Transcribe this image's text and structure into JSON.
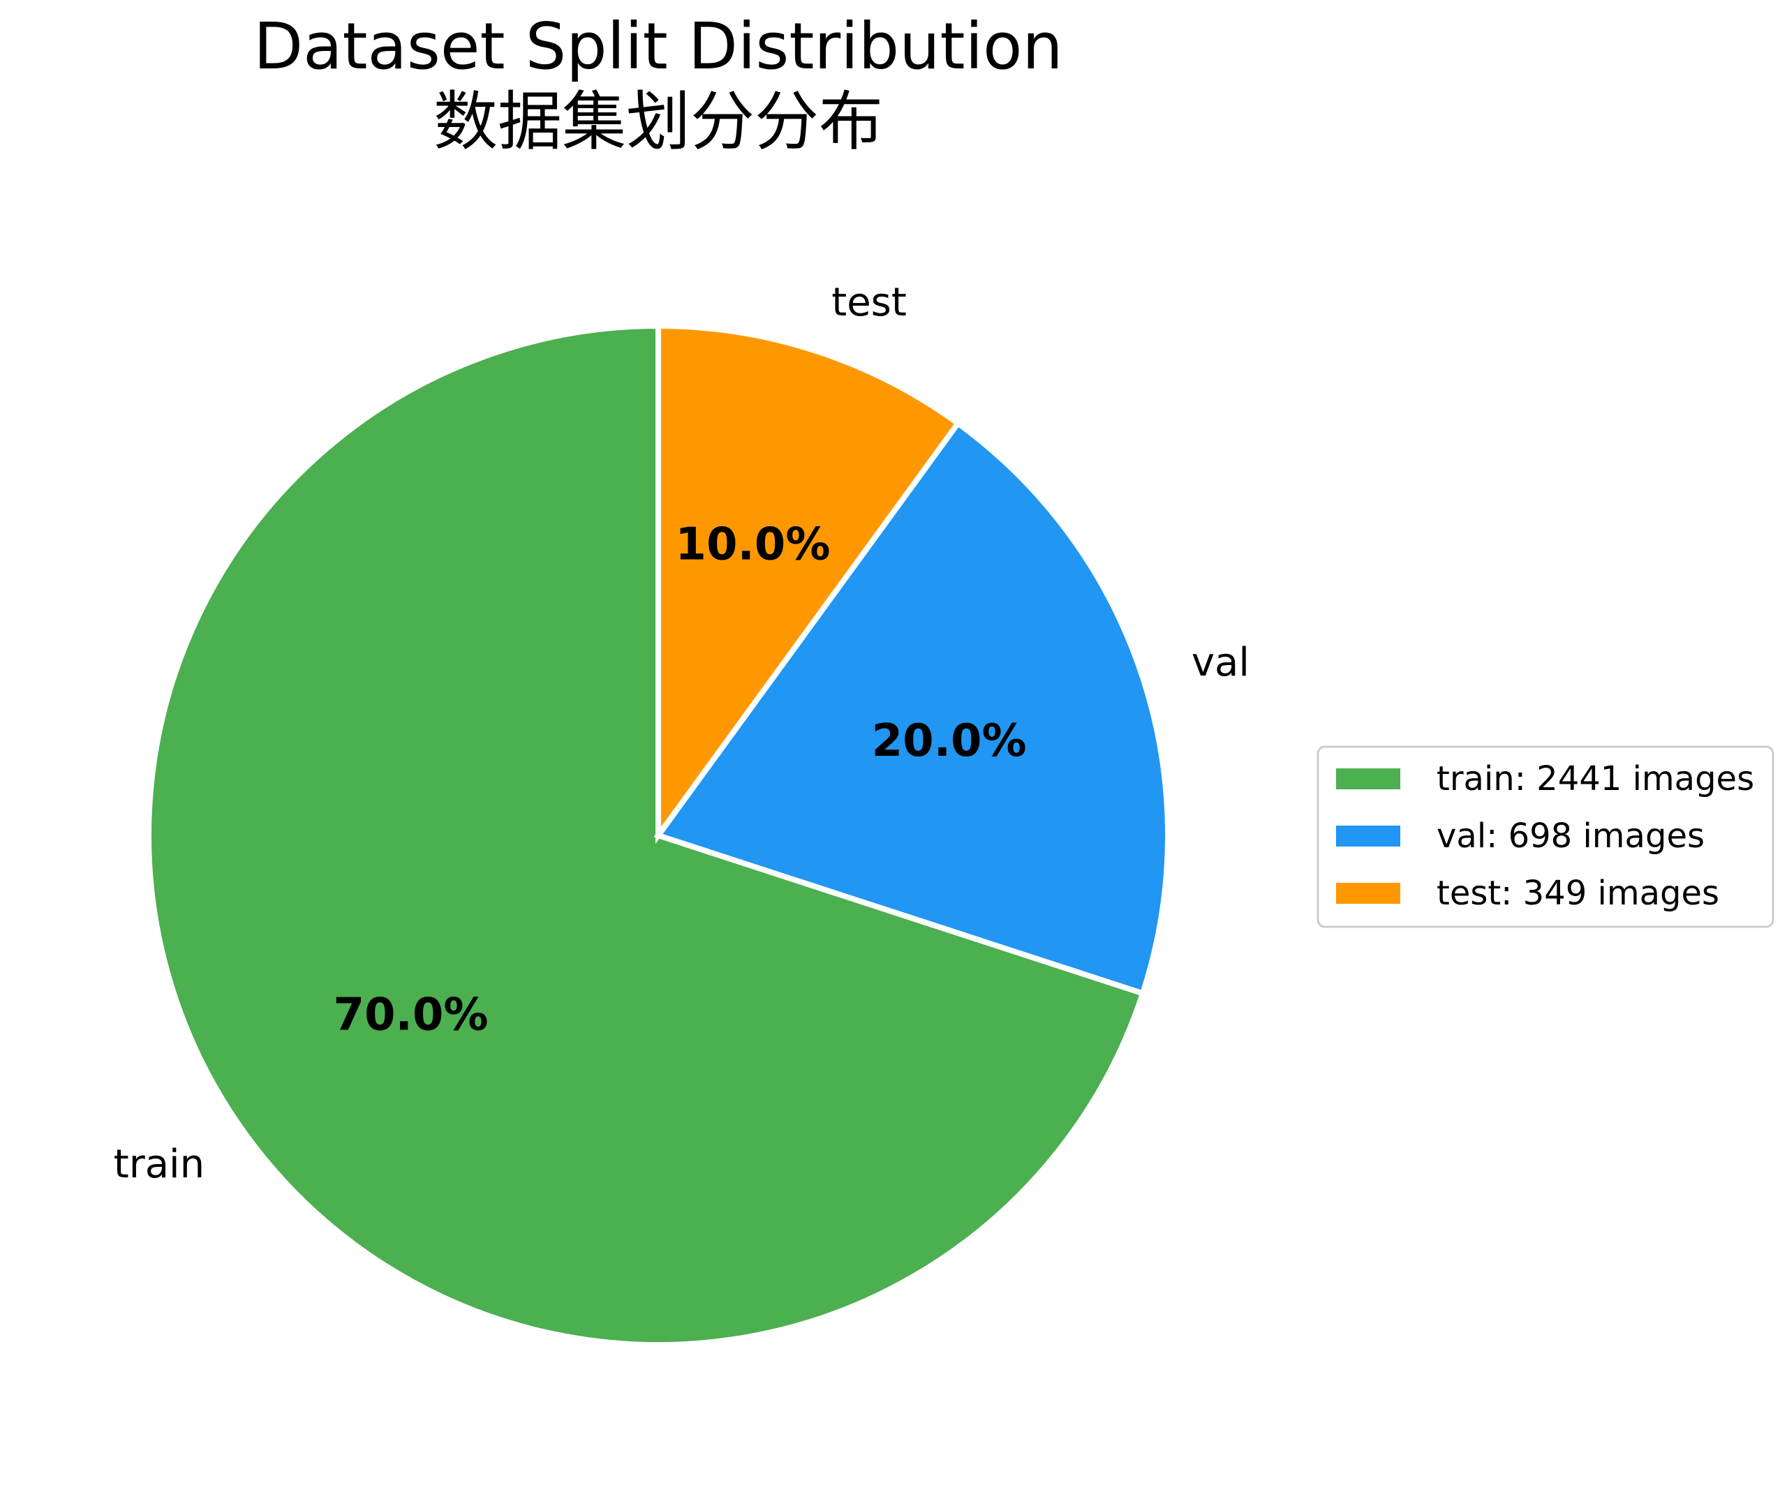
{
  "chart_data": {
    "type": "pie",
    "title": "Dataset Split Distribution",
    "subtitle": "数据集划分分布",
    "categories": [
      "train",
      "val",
      "test"
    ],
    "values": [
      2441,
      698,
      349
    ],
    "percent_labels": [
      "70.0%",
      "20.0%",
      "10.0%"
    ],
    "colors": [
      "#4caf50",
      "#2196f3",
      "#ff9800"
    ],
    "legend": {
      "entries": [
        "train: 2441 images",
        "val: 698 images",
        "test: 349 images"
      ],
      "placement": "center-right"
    },
    "start_angle_deg": 90,
    "direction": "counterclockwise"
  }
}
